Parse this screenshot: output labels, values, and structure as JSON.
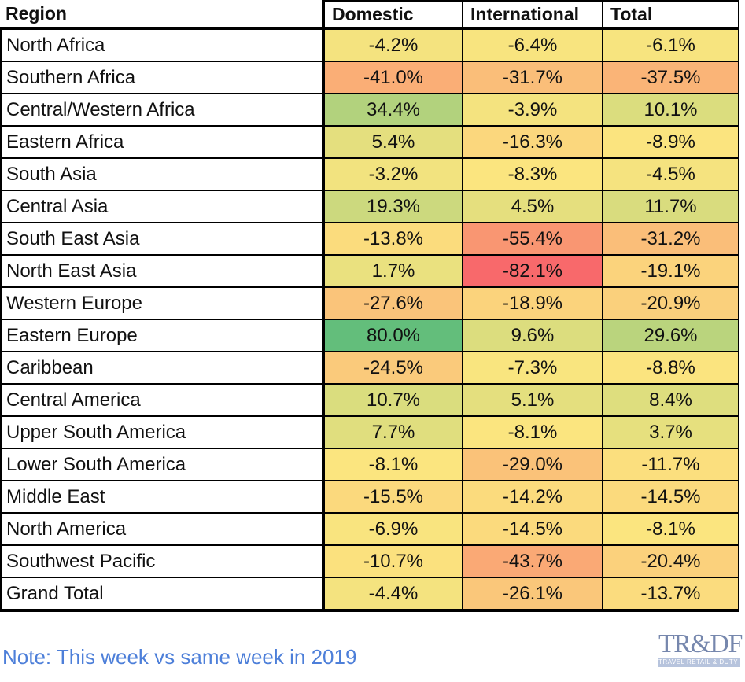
{
  "header": {
    "region": "Region",
    "domestic": "Domestic",
    "international": "International",
    "total": "Total"
  },
  "note": {
    "text": "Note: This week vs same week in 2019",
    "color": "#4d7fd9"
  },
  "watermark": {
    "title": "TR&DF",
    "tagline": "TRAVEL RETAIL & DUTY FREE",
    "title_color": "#6f81a9",
    "banner_color": "#b4c1dc",
    "tagline_text_color": "#ffffff"
  },
  "chart_data": {
    "type": "heatmap",
    "columns": [
      "Domestic",
      "International",
      "Total"
    ],
    "rows": [
      "North Africa",
      "Southern Africa",
      "Central/Western Africa",
      "Eastern Africa",
      "South Asia",
      "Central Asia",
      "South East Asia",
      "North East Asia",
      "Western Europe",
      "Eastern Europe",
      "Caribbean",
      "Central America",
      "Upper South America",
      "Lower South America",
      "Middle East",
      "North America",
      "Southwest Pacific",
      "Grand Total"
    ],
    "values": [
      [
        -4.2,
        -6.4,
        -6.1
      ],
      [
        -41.0,
        -31.7,
        -37.5
      ],
      [
        34.4,
        -3.9,
        10.1
      ],
      [
        5.4,
        -16.3,
        -8.9
      ],
      [
        -3.2,
        -8.3,
        -4.5
      ],
      [
        19.3,
        4.5,
        11.7
      ],
      [
        -13.8,
        -55.4,
        -31.2
      ],
      [
        1.7,
        -82.1,
        -19.1
      ],
      [
        -27.6,
        -18.9,
        -20.9
      ],
      [
        80.0,
        9.6,
        29.6
      ],
      [
        -24.5,
        -7.3,
        -8.8
      ],
      [
        10.7,
        5.1,
        8.4
      ],
      [
        7.7,
        -8.1,
        3.7
      ],
      [
        -8.1,
        -29.0,
        -11.7
      ],
      [
        -15.5,
        -14.2,
        -14.5
      ],
      [
        -6.9,
        -14.5,
        -8.1
      ],
      [
        -10.7,
        -43.7,
        -20.4
      ],
      [
        -4.4,
        -26.1,
        -13.7
      ]
    ],
    "value_unit": "%",
    "value_decimals": 1,
    "color_scale": {
      "min_value": -82.1,
      "mid_value": -8.2,
      "max_value": 80.0,
      "min_color": "#F8696B",
      "mid_color": "#FBE57F",
      "max_color": "#63BE7B"
    },
    "region_cell_background": "#FFFFFF",
    "legend_position": "none",
    "grid": true
  }
}
